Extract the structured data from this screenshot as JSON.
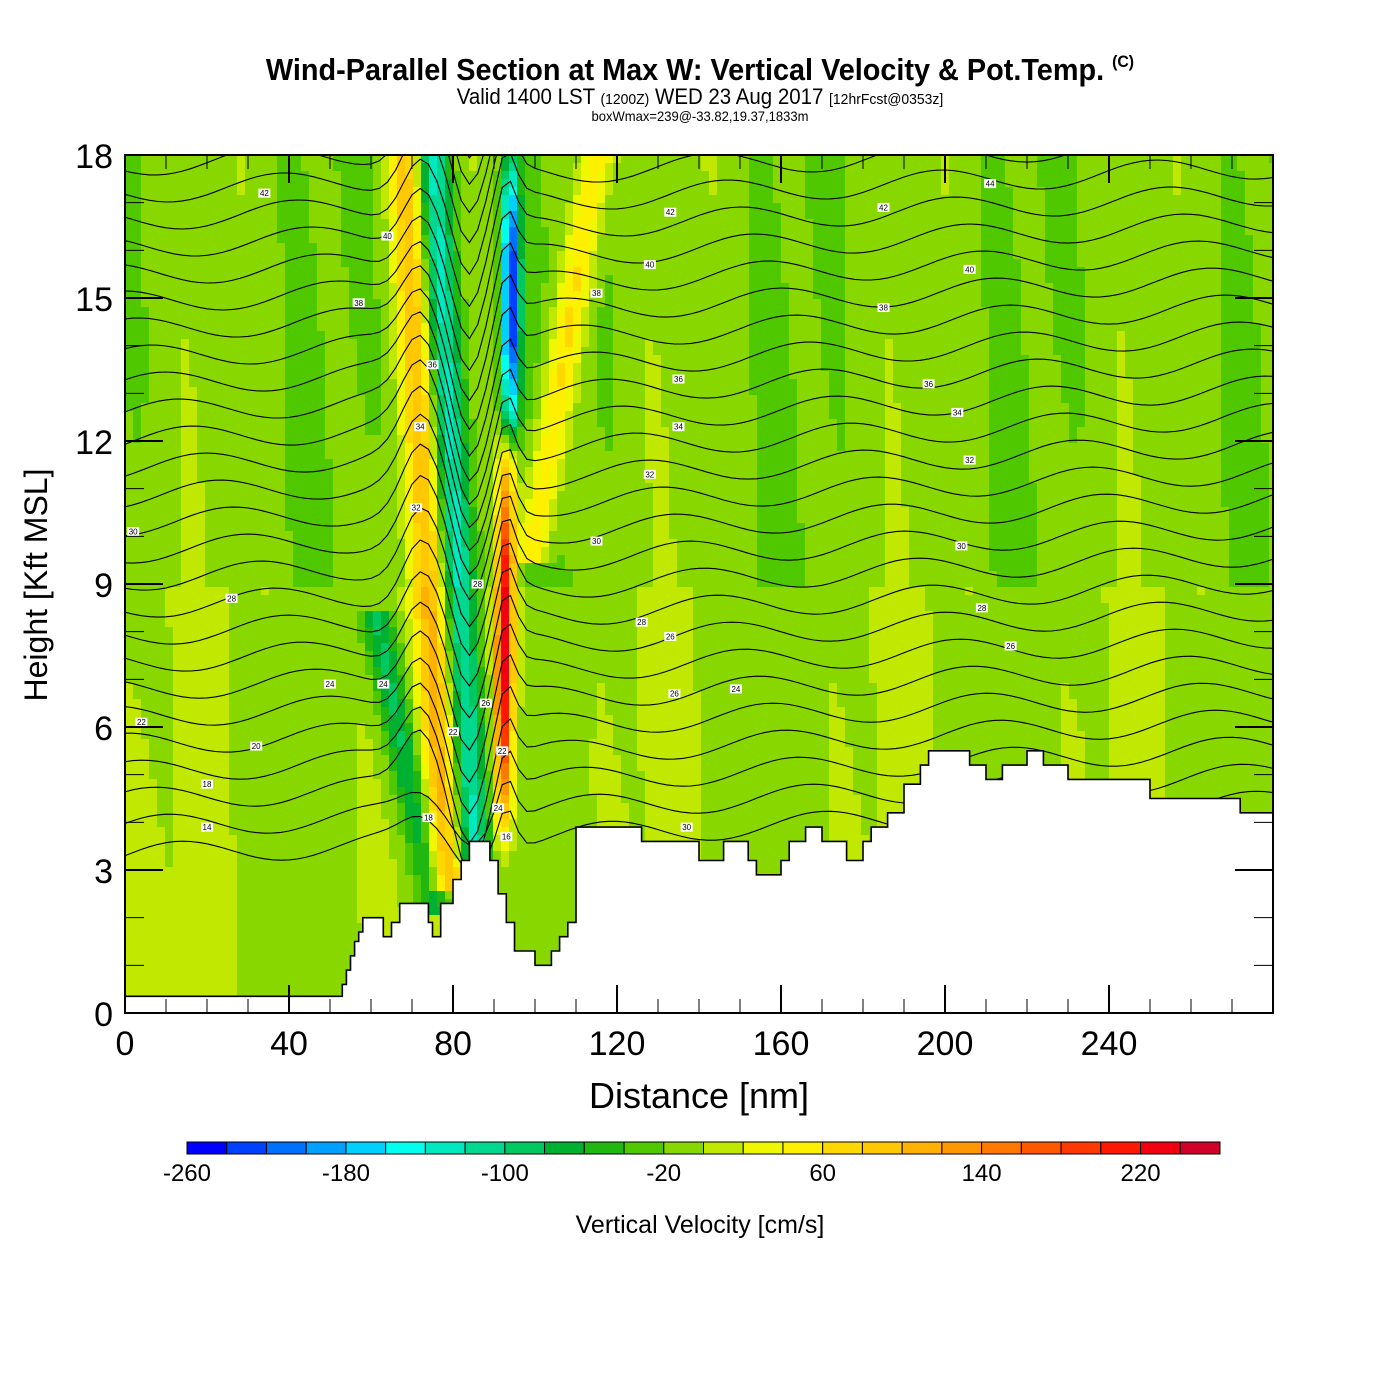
{
  "header": {
    "title": "Wind-Parallel Section at Max W: Vertical Velocity & Pot.Temp.",
    "title_mark": "(C)",
    "valid_prefix": "Valid 1400 LST",
    "valid_utc": "(1200Z)",
    "valid_date": "WED 23 Aug 2017",
    "forecast": "[12hrFcst@0353z]",
    "subtitle": "boxWmax=239@-33.82,19.37,1833m"
  },
  "chart_data": {
    "type": "heatmap",
    "title": "Wind-Parallel Section at Max W: Vertical Velocity & Pot.Temp.",
    "xlabel": "Distance [nm]",
    "ylabel": "Height [Kft MSL]",
    "xlim": [
      0,
      280
    ],
    "ylim": [
      0,
      18
    ],
    "xticks": [
      "0",
      "40",
      "80",
      "120",
      "160",
      "200",
      "240"
    ],
    "xtick_values": [
      0,
      40,
      80,
      120,
      160,
      200,
      240
    ],
    "yticks": [
      "0",
      "3",
      "6",
      "9",
      "12",
      "15",
      "18"
    ],
    "ytick_values": [
      0,
      3,
      6,
      9,
      12,
      15,
      18
    ],
    "x_minor_step": 10,
    "y_minor_step": 1,
    "colorbar": {
      "label": "Vertical Velocity [cm/s]",
      "min": -260,
      "max": 260,
      "step": 20,
      "tick_labels": [
        "-260",
        "-180",
        "-100",
        "-20",
        "60",
        "140",
        "220"
      ],
      "tick_values": [
        -260,
        -180,
        -100,
        -20,
        60,
        140,
        220
      ],
      "colors": [
        "#0000ff",
        "#0040ff",
        "#0070ff",
        "#00a0ff",
        "#00d0ff",
        "#00ffee",
        "#00e8c0",
        "#00d890",
        "#00c860",
        "#00b030",
        "#20b810",
        "#50c800",
        "#88d800",
        "#c0e800",
        "#f0f800",
        "#fff000",
        "#ffd800",
        "#ffc800",
        "#ffb000",
        "#ff9800",
        "#ff7800",
        "#ff5800",
        "#ff3800",
        "#ff1800",
        "#f00010",
        "#d00028"
      ]
    },
    "background_value": 0,
    "features": [
      {
        "name": "updraft-core",
        "x_center": 92,
        "x_top": 93,
        "x_bottom": 92,
        "y_from": 3.5,
        "y_to": 12,
        "peak": 239
      },
      {
        "name": "updraft-band-west",
        "x_bottom": 78,
        "x_top": 68,
        "y_from": 3,
        "y_to": 18,
        "peak": 100
      },
      {
        "name": "updraft-band-east",
        "x_bottom": 100,
        "x_top": 115,
        "y_from": 10,
        "y_to": 18,
        "peak": 80
      },
      {
        "name": "downdraft-core",
        "x_center": 94,
        "y_from": 12,
        "y_to": 18,
        "peak": -240
      },
      {
        "name": "downdraft-band",
        "x_bottom": 85,
        "x_top": 75,
        "y_from": 3.5,
        "y_to": 18,
        "peak": -120
      },
      {
        "name": "downdraft-slope",
        "x_bottom": 75,
        "x_top": 62,
        "y_from": 2.5,
        "y_to": 8,
        "peak": -80
      }
    ],
    "terrain": {
      "x": [
        0,
        52,
        53,
        54,
        55,
        56,
        57,
        58,
        60,
        63,
        65,
        67,
        70,
        74,
        75,
        77,
        80,
        82,
        84,
        87,
        89,
        91,
        93,
        95,
        97,
        100,
        102,
        104,
        106,
        108,
        110,
        118,
        120,
        126,
        130,
        136,
        140,
        144,
        146,
        150,
        152,
        154,
        156,
        160,
        162,
        166,
        170,
        174,
        176,
        178,
        180,
        182,
        186,
        188,
        190,
        194,
        196,
        200,
        206,
        210,
        214,
        220,
        224,
        230,
        244,
        250,
        260,
        272,
        276,
        280
      ],
      "y": [
        0.35,
        0.35,
        0.6,
        0.9,
        1.2,
        1.5,
        1.7,
        2.0,
        2.0,
        1.6,
        1.9,
        2.3,
        2.3,
        1.9,
        1.6,
        2.3,
        2.8,
        3.2,
        3.6,
        3.6,
        3.2,
        2.5,
        1.9,
        1.3,
        1.3,
        1.0,
        1.0,
        1.3,
        1.6,
        1.9,
        3.9,
        3.9,
        3.9,
        3.6,
        3.6,
        3.6,
        3.2,
        3.2,
        3.6,
        3.6,
        3.2,
        2.9,
        2.9,
        3.2,
        3.6,
        3.9,
        3.6,
        3.6,
        3.2,
        3.2,
        3.6,
        3.9,
        4.2,
        4.2,
        4.8,
        5.2,
        5.5,
        5.5,
        5.2,
        4.9,
        5.2,
        5.5,
        5.2,
        4.9,
        4.9,
        4.5,
        4.5,
        4.2,
        4.2,
        4.6
      ]
    },
    "contours": {
      "field": "Potential Temperature",
      "labels": [
        {
          "text": "42",
          "x": 34,
          "y": 17.2
        },
        {
          "text": "42",
          "x": 133,
          "y": 16.8
        },
        {
          "text": "42",
          "x": 185,
          "y": 16.9
        },
        {
          "text": "44",
          "x": 211,
          "y": 17.4
        },
        {
          "text": "40",
          "x": 64,
          "y": 16.3
        },
        {
          "text": "40",
          "x": 128,
          "y": 15.7
        },
        {
          "text": "40",
          "x": 206,
          "y": 15.6
        },
        {
          "text": "38",
          "x": 57,
          "y": 14.9
        },
        {
          "text": "38",
          "x": 115,
          "y": 15.1
        },
        {
          "text": "38",
          "x": 185,
          "y": 14.8
        },
        {
          "text": "36",
          "x": 75,
          "y": 13.6
        },
        {
          "text": "36",
          "x": 135,
          "y": 13.3
        },
        {
          "text": "36",
          "x": 196,
          "y": 13.2
        },
        {
          "text": "34",
          "x": 72,
          "y": 12.3
        },
        {
          "text": "34",
          "x": 135,
          "y": 12.3
        },
        {
          "text": "34",
          "x": 203,
          "y": 12.6
        },
        {
          "text": "32",
          "x": 71,
          "y": 10.6
        },
        {
          "text": "32",
          "x": 128,
          "y": 11.3
        },
        {
          "text": "32",
          "x": 206,
          "y": 11.6
        },
        {
          "text": "30",
          "x": 2,
          "y": 10.1
        },
        {
          "text": "30",
          "x": 115,
          "y": 9.9
        },
        {
          "text": "30",
          "x": 204,
          "y": 9.8
        },
        {
          "text": "28",
          "x": 26,
          "y": 8.7
        },
        {
          "text": "28",
          "x": 86,
          "y": 9.0
        },
        {
          "text": "28",
          "x": 126,
          "y": 8.2
        },
        {
          "text": "28",
          "x": 209,
          "y": 8.5
        },
        {
          "text": "26",
          "x": 133,
          "y": 7.9
        },
        {
          "text": "26",
          "x": 216,
          "y": 7.7
        },
        {
          "text": "26",
          "x": 88,
          "y": 6.5
        },
        {
          "text": "26",
          "x": 134,
          "y": 6.7
        },
        {
          "text": "24",
          "x": 50,
          "y": 6.9
        },
        {
          "text": "24",
          "x": 63,
          "y": 6.9
        },
        {
          "text": "24",
          "x": 149,
          "y": 6.8
        },
        {
          "text": "22",
          "x": 4,
          "y": 6.1
        },
        {
          "text": "22",
          "x": 80,
          "y": 5.9
        },
        {
          "text": "22",
          "x": 92,
          "y": 5.5
        },
        {
          "text": "20",
          "x": 32,
          "y": 5.6
        },
        {
          "text": "18",
          "x": 20,
          "y": 4.8
        },
        {
          "text": "18",
          "x": 74,
          "y": 4.1
        },
        {
          "text": "16",
          "x": 93,
          "y": 3.7
        },
        {
          "text": "14",
          "x": 20,
          "y": 3.9
        },
        {
          "text": "24",
          "x": 91,
          "y": 4.3
        },
        {
          "text": "30",
          "x": 137,
          "y": 3.9
        }
      ]
    },
    "legend": "bottom"
  }
}
